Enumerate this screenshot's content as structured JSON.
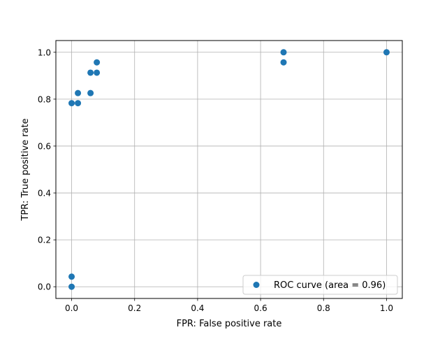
{
  "chart_data": {
    "type": "scatter",
    "xlabel": "FPR: False positive rate",
    "ylabel": "TPR: True positive rate",
    "xlim": [
      -0.05,
      1.05
    ],
    "ylim": [
      -0.05,
      1.05
    ],
    "xticks": [
      0.0,
      0.2,
      0.4,
      0.6,
      0.8,
      1.0
    ],
    "xtick_labels": [
      "0.0",
      "0.2",
      "0.4",
      "0.6",
      "0.8",
      "1.0"
    ],
    "yticks": [
      0.0,
      0.2,
      0.4,
      0.6,
      0.8,
      1.0
    ],
    "ytick_labels": [
      "0.0",
      "0.2",
      "0.4",
      "0.6",
      "0.8",
      "1.0"
    ],
    "grid": true,
    "legend_position": "lower-right",
    "series": [
      {
        "name": "ROC curve (area = 0.96)",
        "color": "#1f77b4",
        "points": [
          {
            "x": 0.0,
            "y": 0.0
          },
          {
            "x": 0.0,
            "y": 0.043
          },
          {
            "x": 0.0,
            "y": 0.783
          },
          {
            "x": 0.02,
            "y": 0.783
          },
          {
            "x": 0.02,
            "y": 0.826
          },
          {
            "x": 0.06,
            "y": 0.826
          },
          {
            "x": 0.06,
            "y": 0.913
          },
          {
            "x": 0.08,
            "y": 0.913
          },
          {
            "x": 0.08,
            "y": 0.957
          },
          {
            "x": 0.673,
            "y": 0.957
          },
          {
            "x": 0.673,
            "y": 1.0
          },
          {
            "x": 1.0,
            "y": 1.0
          }
        ]
      }
    ]
  }
}
